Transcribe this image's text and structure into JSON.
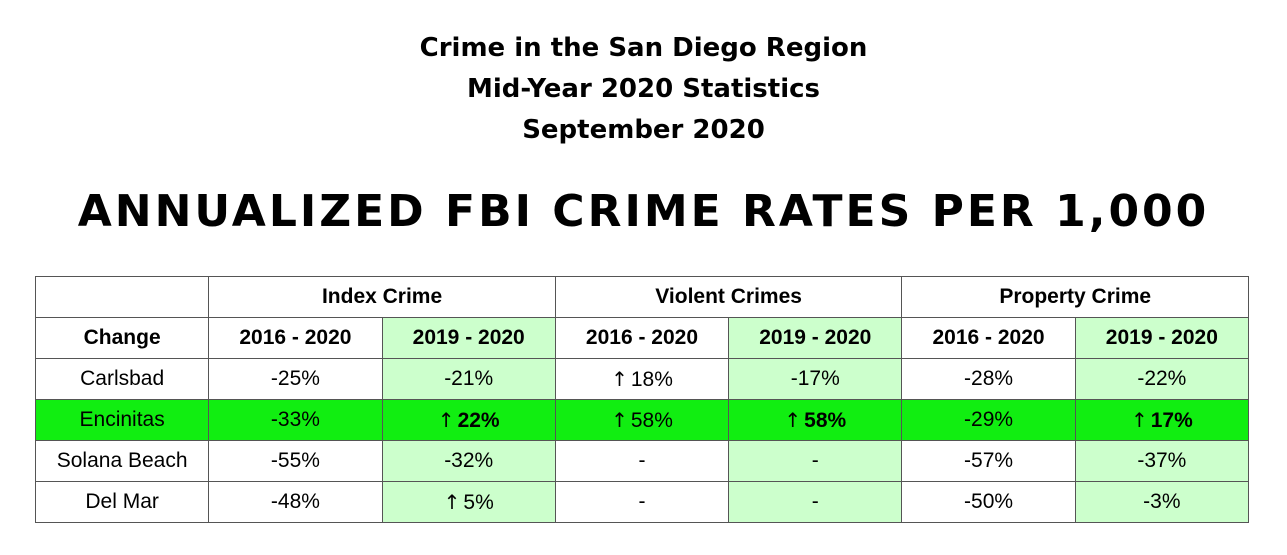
{
  "header": {
    "lines": [
      "Crime in the San Diego Region",
      "Mid-Year 2020 Statistics",
      "September 2020"
    ],
    "big_title": "ANNUALIZED FBI CRIME RATES PER 1,000"
  },
  "table": {
    "group_headers": [
      "Index Crime",
      "Violent Crimes",
      "Property Crime"
    ],
    "change_label": "Change",
    "period_headers": [
      "2016 - 2020",
      "2019 - 2020",
      "2016 - 2020",
      "2019 - 2020",
      "2016 - 2020",
      "2019 - 2020"
    ],
    "rows": [
      {
        "city": "Carlsbad",
        "values": [
          "-25%",
          "-21%",
          "18%",
          "-17%",
          "-28%",
          "-22%"
        ],
        "arrows": [
          false,
          false,
          true,
          false,
          false,
          false
        ],
        "bold": [
          false,
          false,
          false,
          false,
          false,
          false
        ]
      },
      {
        "city": "Encinitas",
        "values": [
          "-33%",
          "22%",
          "58%",
          "58%",
          "-29%",
          "17%"
        ],
        "arrows": [
          false,
          true,
          true,
          true,
          false,
          true
        ],
        "bold": [
          false,
          true,
          false,
          true,
          false,
          true
        ]
      },
      {
        "city": "Solana Beach",
        "values": [
          "-55%",
          "-32%",
          "-",
          "-",
          "-57%",
          "-37%"
        ],
        "arrows": [
          false,
          false,
          false,
          false,
          false,
          false
        ],
        "bold": [
          false,
          false,
          false,
          false,
          false,
          false
        ]
      },
      {
        "city": "Del Mar",
        "values": [
          "-48%",
          "5%",
          "-",
          "-",
          "-50%",
          "-3%"
        ],
        "arrows": [
          false,
          true,
          false,
          false,
          false,
          false
        ],
        "bold": [
          false,
          false,
          false,
          false,
          false,
          false
        ]
      }
    ]
  },
  "colors": {
    "shade": "#ccffcc",
    "highlight": "#11ee11"
  }
}
